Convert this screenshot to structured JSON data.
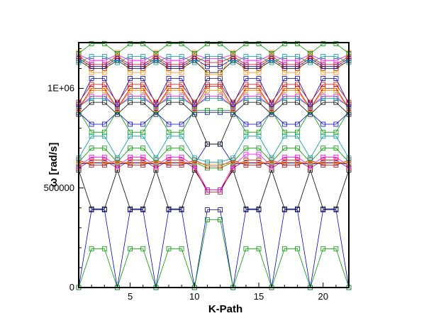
{
  "chart_data": {
    "type": "line",
    "title": "",
    "xlabel": "K-Path",
    "ylabel": "ω [rad/s]",
    "xlim": [
      1,
      22
    ],
    "ylim": [
      0,
      1230000
    ],
    "xticks": [
      5,
      10,
      15,
      20
    ],
    "xtick_labels": [
      "5",
      "10",
      "15",
      "20"
    ],
    "yticks": [
      0,
      500000,
      1000000
    ],
    "ytick_labels": [
      "0",
      "500000",
      "1E+06"
    ],
    "grid": false,
    "legend": "none",
    "marker": "open-square",
    "x": [
      1,
      2,
      3,
      4,
      5,
      6,
      7,
      8,
      9,
      10,
      11,
      12,
      13,
      14,
      15,
      16,
      17,
      18,
      19,
      20,
      21,
      22
    ],
    "series": [
      {
        "color": "#0000cc",
        "values": [
          0,
          390000,
          390000,
          0,
          390000,
          390000,
          0,
          390000,
          390000,
          0,
          390000,
          390000,
          0,
          390000,
          390000,
          0,
          390000,
          390000,
          0,
          390000,
          390000,
          0
        ]
      },
      {
        "color": "#009900",
        "values": [
          0,
          195000,
          195000,
          0,
          195000,
          195000,
          0,
          195000,
          195000,
          0,
          340000,
          340000,
          0,
          195000,
          195000,
          0,
          195000,
          195000,
          0,
          195000,
          195000,
          0
        ]
      },
      {
        "color": "#000000",
        "values": [
          590000,
          395000,
          395000,
          590000,
          395000,
          395000,
          590000,
          395000,
          395000,
          590000,
          490000,
          490000,
          590000,
          395000,
          395000,
          590000,
          395000,
          395000,
          590000,
          395000,
          395000,
          590000
        ]
      },
      {
        "color": "#cc0000",
        "values": [
          600000,
          640000,
          640000,
          600000,
          640000,
          640000,
          600000,
          640000,
          640000,
          600000,
          480000,
          480000,
          600000,
          640000,
          640000,
          600000,
          640000,
          640000,
          600000,
          640000,
          640000,
          600000
        ]
      },
      {
        "color": "#ff00ff",
        "values": [
          610000,
          655000,
          655000,
          610000,
          655000,
          655000,
          610000,
          655000,
          655000,
          610000,
          490000,
          490000,
          610000,
          670000,
          670000,
          610000,
          655000,
          655000,
          610000,
          655000,
          655000,
          610000
        ]
      },
      {
        "color": "#0000cc",
        "values": [
          620000,
          625000,
          625000,
          620000,
          625000,
          625000,
          620000,
          625000,
          625000,
          620000,
          720000,
          720000,
          620000,
          625000,
          625000,
          620000,
          625000,
          625000,
          620000,
          625000,
          625000,
          620000
        ]
      },
      {
        "color": "#009900",
        "values": [
          630000,
          700000,
          700000,
          630000,
          700000,
          700000,
          630000,
          700000,
          700000,
          630000,
          600000,
          600000,
          630000,
          700000,
          700000,
          630000,
          700000,
          700000,
          630000,
          700000,
          700000,
          630000
        ]
      },
      {
        "color": "#cc0000",
        "values": [
          640000,
          615000,
          615000,
          640000,
          615000,
          615000,
          640000,
          615000,
          615000,
          640000,
          610000,
          610000,
          640000,
          615000,
          615000,
          640000,
          615000,
          615000,
          640000,
          615000,
          615000,
          640000
        ]
      },
      {
        "color": "#ff8800",
        "values": [
          625000,
          630000,
          630000,
          625000,
          630000,
          630000,
          625000,
          630000,
          630000,
          625000,
          620000,
          620000,
          625000,
          630000,
          630000,
          625000,
          630000,
          630000,
          625000,
          630000,
          630000,
          625000
        ]
      },
      {
        "color": "#009999",
        "values": [
          650000,
          760000,
          760000,
          650000,
          760000,
          760000,
          650000,
          760000,
          760000,
          650000,
          630000,
          630000,
          650000,
          760000,
          760000,
          650000,
          760000,
          760000,
          650000,
          760000,
          760000,
          650000
        ]
      },
      {
        "color": "#000000",
        "values": [
          870000,
          930000,
          930000,
          870000,
          930000,
          930000,
          870000,
          930000,
          930000,
          870000,
          720000,
          720000,
          870000,
          930000,
          930000,
          870000,
          930000,
          930000,
          870000,
          930000,
          930000,
          870000
        ]
      },
      {
        "color": "#0000cc",
        "values": [
          880000,
          820000,
          820000,
          880000,
          820000,
          820000,
          880000,
          820000,
          820000,
          880000,
          880000,
          880000,
          880000,
          820000,
          820000,
          880000,
          820000,
          820000,
          880000,
          820000,
          820000,
          880000
        ]
      },
      {
        "color": "#009900",
        "values": [
          890000,
          780000,
          780000,
          890000,
          780000,
          780000,
          890000,
          780000,
          780000,
          890000,
          890000,
          890000,
          890000,
          780000,
          780000,
          890000,
          780000,
          780000,
          890000,
          780000,
          780000,
          890000
        ]
      },
      {
        "color": "#cc0000",
        "values": [
          900000,
          1000000,
          1000000,
          900000,
          1000000,
          1000000,
          900000,
          1000000,
          1000000,
          900000,
          1010000,
          1010000,
          900000,
          1000000,
          1000000,
          900000,
          1000000,
          1000000,
          900000,
          1000000,
          1000000,
          900000
        ]
      },
      {
        "color": "#ff00ff",
        "values": [
          905000,
          960000,
          960000,
          905000,
          960000,
          960000,
          905000,
          960000,
          960000,
          905000,
          960000,
          960000,
          905000,
          960000,
          960000,
          905000,
          960000,
          960000,
          905000,
          960000,
          960000,
          905000
        ]
      },
      {
        "color": "#ff8800",
        "values": [
          895000,
          990000,
          990000,
          895000,
          990000,
          990000,
          895000,
          990000,
          990000,
          895000,
          990000,
          990000,
          895000,
          990000,
          990000,
          895000,
          990000,
          990000,
          895000,
          990000,
          990000,
          895000
        ]
      },
      {
        "color": "#009999",
        "values": [
          910000,
          950000,
          950000,
          910000,
          950000,
          950000,
          910000,
          950000,
          950000,
          910000,
          950000,
          950000,
          910000,
          950000,
          950000,
          910000,
          950000,
          950000,
          910000,
          950000,
          950000,
          910000
        ]
      },
      {
        "color": "#0000cc",
        "values": [
          920000,
          1050000,
          1050000,
          920000,
          1050000,
          1050000,
          920000,
          1050000,
          1050000,
          920000,
          1050000,
          1050000,
          920000,
          1050000,
          1050000,
          920000,
          1050000,
          1050000,
          920000,
          1050000,
          1050000,
          920000
        ]
      },
      {
        "color": "#cc0000",
        "values": [
          930000,
          1020000,
          1020000,
          930000,
          1020000,
          1020000,
          930000,
          1020000,
          1020000,
          930000,
          1020000,
          1020000,
          930000,
          1020000,
          1020000,
          930000,
          1020000,
          1020000,
          930000,
          1020000,
          1020000,
          930000
        ]
      },
      {
        "color": "#000000",
        "values": [
          1140000,
          1100000,
          1100000,
          1140000,
          1100000,
          1100000,
          1140000,
          1100000,
          1100000,
          1140000,
          1080000,
          1080000,
          1140000,
          1100000,
          1100000,
          1140000,
          1100000,
          1100000,
          1140000,
          1100000,
          1100000,
          1140000
        ]
      },
      {
        "color": "#0000cc",
        "values": [
          1150000,
          1110000,
          1110000,
          1150000,
          1110000,
          1110000,
          1150000,
          1110000,
          1110000,
          1150000,
          1110000,
          1110000,
          1150000,
          1110000,
          1110000,
          1150000,
          1110000,
          1110000,
          1150000,
          1110000,
          1110000,
          1150000
        ]
      },
      {
        "color": "#cc0000",
        "values": [
          1160000,
          1120000,
          1120000,
          1160000,
          1120000,
          1120000,
          1160000,
          1120000,
          1120000,
          1160000,
          1130000,
          1130000,
          1160000,
          1120000,
          1120000,
          1160000,
          1120000,
          1120000,
          1160000,
          1120000,
          1120000,
          1160000
        ]
      },
      {
        "color": "#ff00ff",
        "values": [
          1170000,
          1140000,
          1140000,
          1170000,
          1140000,
          1140000,
          1170000,
          1140000,
          1140000,
          1170000,
          1150000,
          1150000,
          1170000,
          1140000,
          1140000,
          1170000,
          1140000,
          1140000,
          1170000,
          1140000,
          1140000,
          1170000
        ]
      },
      {
        "color": "#ff8800",
        "values": [
          1180000,
          1080000,
          1080000,
          1180000,
          1080000,
          1080000,
          1180000,
          1080000,
          1080000,
          1180000,
          1070000,
          1070000,
          1180000,
          1080000,
          1080000,
          1180000,
          1080000,
          1080000,
          1180000,
          1080000,
          1080000,
          1180000
        ]
      },
      {
        "color": "#009999",
        "values": [
          1130000,
          1160000,
          1160000,
          1130000,
          1160000,
          1160000,
          1130000,
          1160000,
          1160000,
          1130000,
          1160000,
          1160000,
          1130000,
          1160000,
          1160000,
          1130000,
          1160000,
          1160000,
          1130000,
          1160000,
          1160000,
          1130000
        ]
      },
      {
        "color": "#009900",
        "values": [
          1175000,
          1225000,
          1225000,
          1175000,
          1225000,
          1225000,
          1175000,
          1225000,
          1225000,
          1175000,
          1225000,
          1225000,
          1175000,
          1225000,
          1225000,
          1175000,
          1225000,
          1225000,
          1175000,
          1225000,
          1225000,
          1175000
        ]
      }
    ]
  }
}
